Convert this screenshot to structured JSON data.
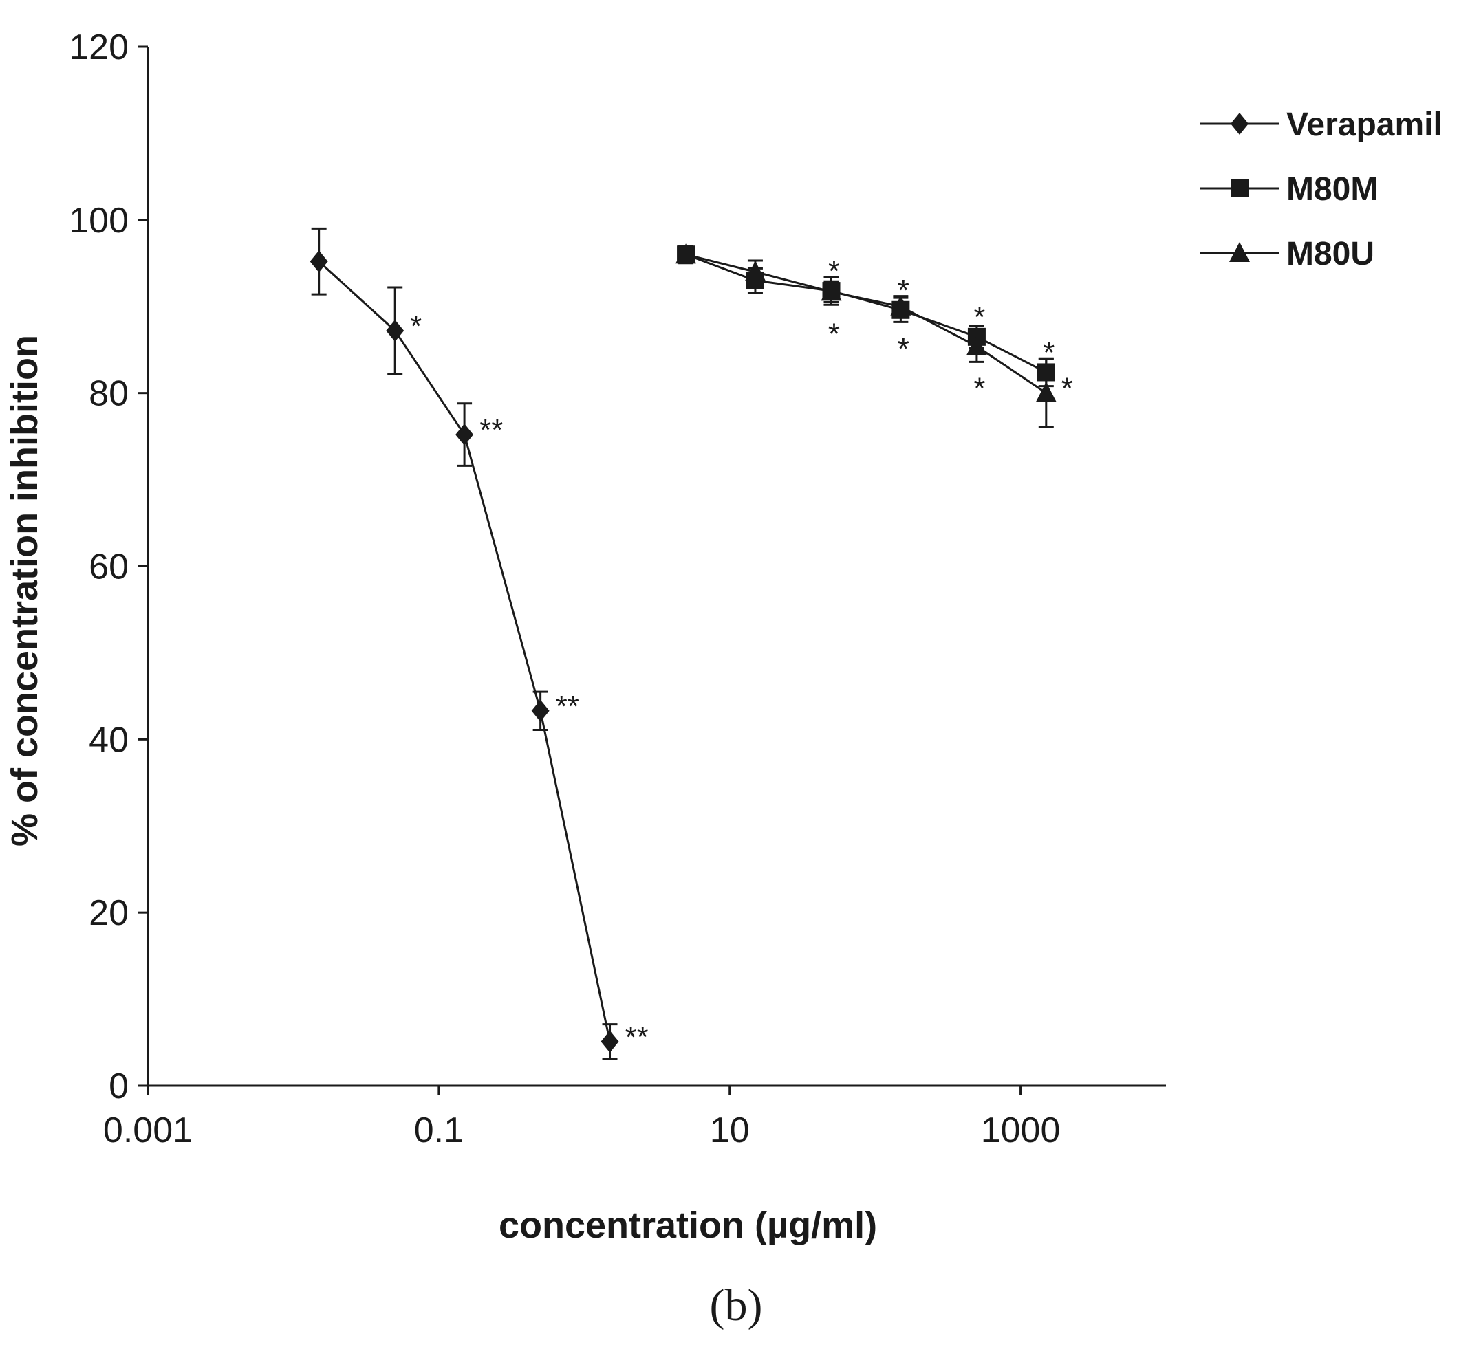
{
  "chart_data": {
    "type": "line",
    "xlabel": "concentration (µg/ml)",
    "ylabel": "% of concentration inhibition",
    "panel_label": "(b)",
    "x_scale": "log",
    "xlim": [
      0.001,
      10000
    ],
    "ylim": [
      0,
      120
    ],
    "x_ticks": [
      0.001,
      0.1,
      10,
      1000
    ],
    "x_tick_labels": [
      "0.001",
      "0.1",
      "10",
      "1000"
    ],
    "y_ticks": [
      0,
      20,
      40,
      60,
      80,
      100,
      120
    ],
    "y_tick_labels": [
      "0",
      "20",
      "40",
      "60",
      "80",
      "100",
      "120"
    ],
    "grid": false,
    "legend_position": "top-right",
    "series": [
      {
        "name": "Verapamil",
        "marker": "diamond",
        "color": "#1a1a1a",
        "x": [
          0.015,
          0.05,
          0.15,
          0.5,
          1.5
        ],
        "y": [
          95.2,
          87.2,
          75.2,
          43.3,
          5.1
        ],
        "err": [
          3.8,
          5.0,
          3.6,
          2.2,
          2.0
        ],
        "annotations": [
          {
            "text": "",
            "side": "right"
          },
          {
            "text": "*",
            "side": "right"
          },
          {
            "text": "**",
            "side": "right"
          },
          {
            "text": "**",
            "side": "right"
          },
          {
            "text": "**",
            "side": "right"
          }
        ]
      },
      {
        "name": "M80M",
        "marker": "square",
        "color": "#1a1a1a",
        "x": [
          5,
          15,
          50,
          150,
          500,
          1500
        ],
        "y": [
          96.0,
          93.0,
          91.8,
          89.6,
          86.5,
          82.4
        ],
        "err": [
          0.9,
          1.4,
          1.6,
          1.4,
          1.3,
          1.6
        ],
        "annotations": [
          {
            "text": "",
            "side": "above"
          },
          {
            "text": "",
            "side": "above"
          },
          {
            "text": "*",
            "side": "above"
          },
          {
            "text": "*",
            "side": "above"
          },
          {
            "text": "*",
            "side": "above"
          },
          {
            "text": "*",
            "side": "above"
          }
        ]
      },
      {
        "name": "M80U",
        "marker": "triangle",
        "color": "#1a1a1a",
        "x": [
          5,
          15,
          50,
          150,
          500,
          1500
        ],
        "y": [
          96.0,
          94.0,
          91.7,
          90.0,
          85.4,
          80.0
        ],
        "err": [
          1.0,
          1.3,
          1.2,
          1.2,
          1.8,
          3.9
        ],
        "annotations": [
          {
            "text": "",
            "side": "below"
          },
          {
            "text": "",
            "side": "below"
          },
          {
            "text": "*",
            "side": "below"
          },
          {
            "text": "*",
            "side": "below"
          },
          {
            "text": "*",
            "side": "below"
          },
          {
            "text": "*",
            "side": "right"
          }
        ]
      }
    ]
  }
}
